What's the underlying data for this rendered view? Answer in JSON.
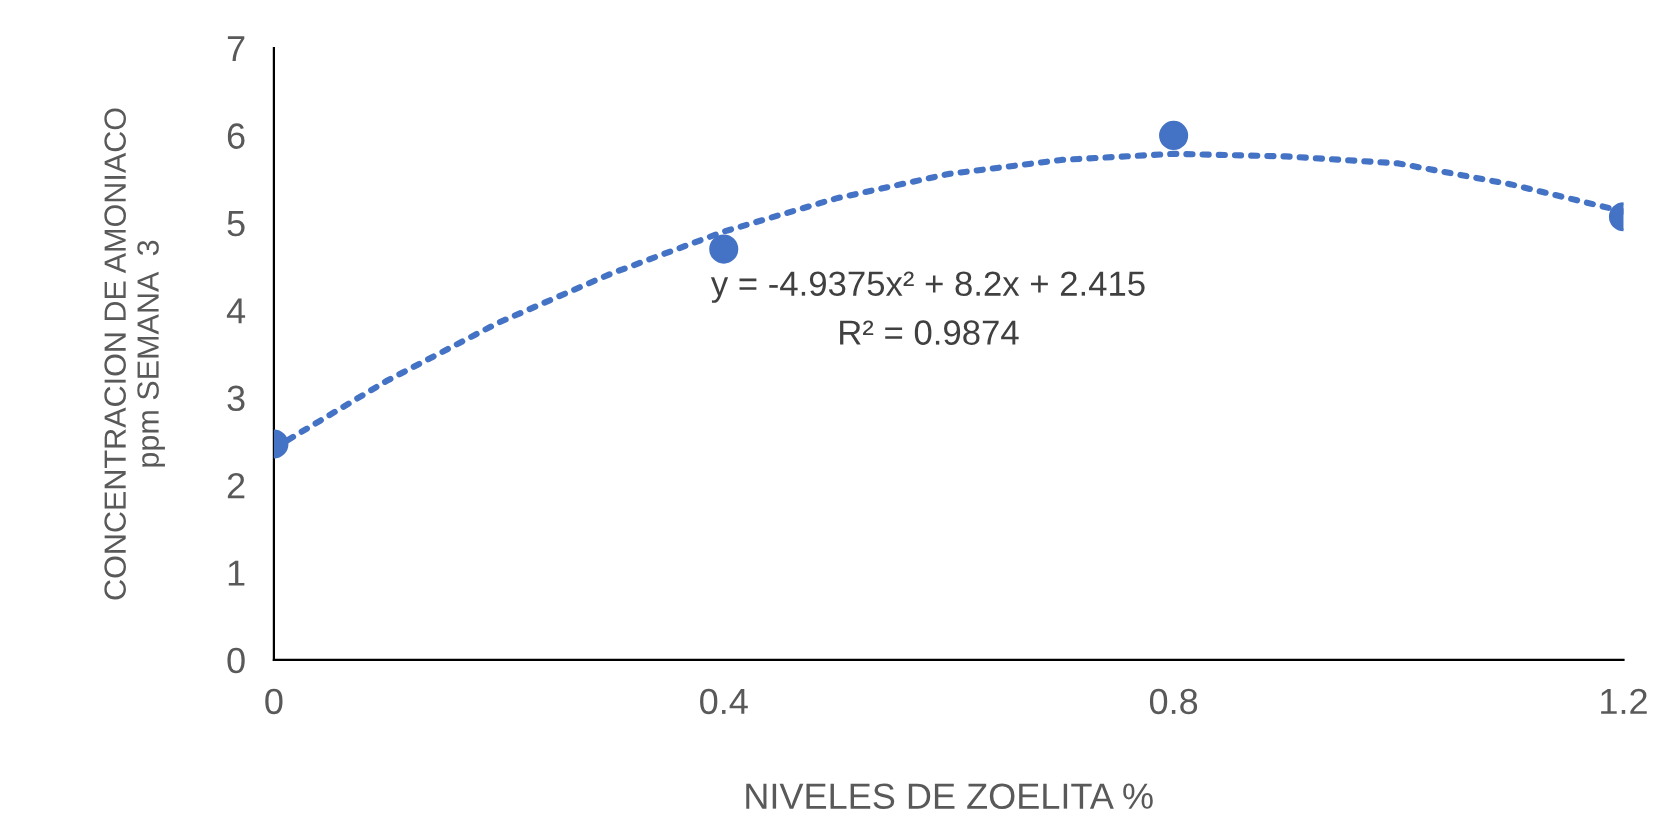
{
  "chart_data": {
    "type": "scatter",
    "xlabel": "NIVELES DE ZOELITA %",
    "ylabel": "CONCENTRACION DE AMONIACO\nppm SEMANA  3",
    "xlim": [
      0,
      1.2
    ],
    "xticks": [
      0,
      0.4,
      0.8,
      1.2
    ],
    "ylim": [
      0,
      7
    ],
    "yticks": [
      0,
      1,
      2,
      3,
      4,
      5,
      6,
      7
    ],
    "grid": false,
    "legend": false,
    "marker": "circle",
    "series": [
      {
        "color": "#4472c4",
        "x": [
          0,
          0.4,
          0.8,
          1.2
        ],
        "values": [
          2.47,
          4.7,
          6.0,
          5.07
        ]
      },
      {
        "type": "line",
        "color": "#4472c4",
        "line_style": "dotted",
        "marker": "none",
        "x": [
          0,
          0.1,
          0.2,
          0.3,
          0.4,
          0.5,
          0.6,
          0.7,
          0.8,
          0.9,
          1.0,
          1.1,
          1.2
        ],
        "values": [
          2.42,
          3.19,
          3.86,
          4.42,
          4.9,
          5.28,
          5.56,
          5.72,
          5.79,
          5.76,
          5.68,
          5.44,
          5.13
        ]
      }
    ],
    "annotations": [
      "y = -4.9375x² + 8.2x + 2.415",
      "R² = 0.9874"
    ]
  }
}
